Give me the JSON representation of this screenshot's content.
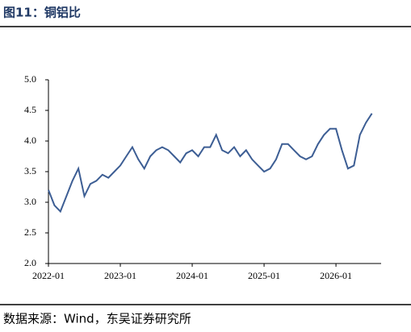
{
  "chart_data": {
    "type": "line",
    "title": "图11：铜铝比",
    "source": "数据来源：Wind，东吴证券研究所",
    "x": [
      "2022-01",
      "2022-02",
      "2022-03",
      "2022-04",
      "2022-05",
      "2022-06",
      "2022-07",
      "2022-08",
      "2022-09",
      "2022-10",
      "2022-11",
      "2022-12",
      "2023-01",
      "2023-02",
      "2023-03",
      "2023-04",
      "2023-05",
      "2023-06",
      "2023-07",
      "2023-08",
      "2023-09",
      "2023-10",
      "2023-11",
      "2023-12",
      "2024-01",
      "2024-02",
      "2024-03",
      "2024-04",
      "2024-05",
      "2024-06",
      "2024-07",
      "2024-08",
      "2024-09",
      "2024-10",
      "2024-11",
      "2024-12",
      "2025-01",
      "2025-02",
      "2025-03",
      "2025-04",
      "2025-05",
      "2025-06",
      "2025-07",
      "2025-08",
      "2025-09",
      "2025-10",
      "2025-11",
      "2025-12",
      "2026-01",
      "2026-02",
      "2026-03",
      "2026-04",
      "2026-05",
      "2026-06",
      "2026-07"
    ],
    "series": [
      {
        "color": "#3d5e94",
        "values": [
          3.2,
          2.95,
          2.85,
          3.1,
          3.35,
          3.55,
          3.1,
          3.3,
          3.35,
          3.45,
          3.4,
          3.5,
          3.6,
          3.75,
          3.9,
          3.7,
          3.55,
          3.75,
          3.85,
          3.9,
          3.85,
          3.75,
          3.65,
          3.8,
          3.85,
          3.75,
          3.9,
          3.9,
          4.1,
          3.85,
          3.8,
          3.9,
          3.75,
          3.85,
          3.7,
          3.6,
          3.5,
          3.55,
          3.7,
          3.95,
          3.95,
          3.85,
          3.75,
          3.7,
          3.75,
          3.95,
          4.1,
          4.2,
          4.2,
          3.85,
          3.55,
          3.6,
          4.1,
          4.3,
          4.45
        ]
      }
    ],
    "xlim": [
      "2022-01",
      "2026-08"
    ],
    "xticks": [
      "2022-01",
      "2023-01",
      "2024-01",
      "2025-01",
      "2026-01"
    ],
    "ylim": [
      2,
      5
    ],
    "yticks": [
      {
        "value": 2,
        "label": "2.0"
      },
      2.5,
      {
        "value": 3,
        "label": "3.0"
      },
      3.5,
      {
        "value": 4,
        "label": "4.0"
      },
      4.5,
      {
        "value": 5,
        "label": "5.0"
      }
    ]
  }
}
